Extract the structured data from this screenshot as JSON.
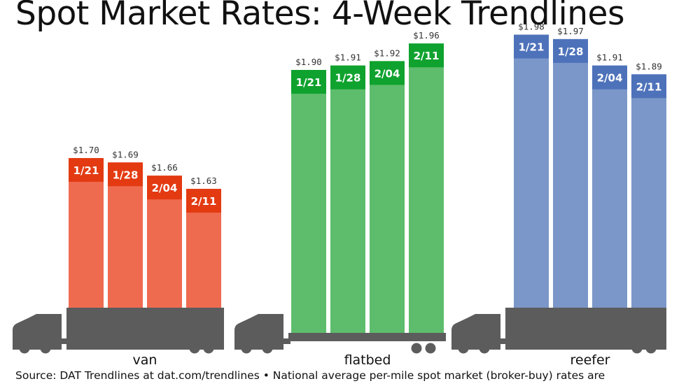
{
  "title": "Spot Market Rates: 4-Week Trendlines",
  "source": "Source: DAT Trendlines at dat.com/trendlines • National average per-mile spot market (broker-buy) rates are",
  "colors": {
    "van": "#ef6b50",
    "van_band": "#e33a12",
    "flatbed": "#5dbd6c",
    "flatbed_band": "#0fa22e",
    "reefer": "#7b97c9",
    "reefer_band": "#4e72ba",
    "truck": "#5c5c5c"
  },
  "icons": [
    "truck-cab-icon",
    "truck-wheel-icon"
  ],
  "chart_data": {
    "type": "bar",
    "title": "Spot Market Rates: 4-Week Trendlines",
    "categories": [
      "1/21",
      "1/28",
      "2/04",
      "2/11"
    ],
    "series": [
      {
        "name": "van",
        "values": [
          1.7,
          1.69,
          1.66,
          1.63
        ],
        "labels": [
          "$1.70",
          "$1.69",
          "$1.66",
          "$1.63"
        ]
      },
      {
        "name": "flatbed",
        "values": [
          1.9,
          1.91,
          1.92,
          1.96
        ],
        "labels": [
          "$1.90",
          "$1.91",
          "$1.92",
          "$1.96"
        ]
      },
      {
        "name": "reefer",
        "values": [
          1.98,
          1.97,
          1.91,
          1.89
        ],
        "labels": [
          "$1.98",
          "$1.97",
          "$1.91",
          "$1.89"
        ]
      }
    ],
    "grid": false,
    "legend": "none"
  }
}
